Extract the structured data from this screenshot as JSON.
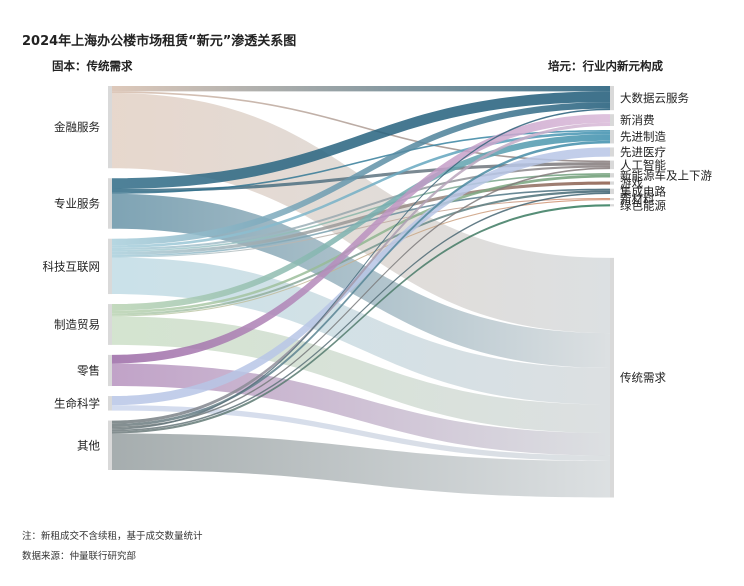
{
  "title": "2024年上海办公楼市场租赁“新元”渗透关系图",
  "left_header": "固本：传统需求",
  "right_header": "培元：行业内新元构成",
  "footnote_1": "注：新租成交不含续租，基于成交数量统计",
  "footnote_2": "数据来源：仲量联行研究部",
  "chart_data": {
    "type": "sankey",
    "title": "2024年上海办公楼市场租赁“新元”渗透关系图",
    "sources": [
      {
        "name": "金融服务",
        "color": "#d8bfae"
      },
      {
        "name": "专业服务",
        "color": "#2f6b86"
      },
      {
        "name": "科技互联网",
        "color": "#a9cfdc"
      },
      {
        "name": "制造贸易",
        "color": "#b9d3b2"
      },
      {
        "name": "零售",
        "color": "#9b6aa6"
      },
      {
        "name": "生命科学",
        "color": "#b8c6e6"
      },
      {
        "name": "其他",
        "color": "#6f7b7d"
      }
    ],
    "targets": [
      {
        "name": "大数据云服务",
        "color": "#1e5a78"
      },
      {
        "name": "新消费",
        "color": "#d9b8d8"
      },
      {
        "name": "先进制造",
        "color": "#3d8fae"
      },
      {
        "name": "先进医疗",
        "color": "#b8c6e6"
      },
      {
        "name": "人工智能",
        "color": "#857a7a"
      },
      {
        "name": "新能源车及上下游",
        "color": "#6a9a72"
      },
      {
        "name": "游戏",
        "color": "#8a5a48"
      },
      {
        "name": "集成电路",
        "color": "#3a5f6f"
      },
      {
        "name": "新材料",
        "color": "#d28a6a"
      },
      {
        "name": "绿色能源",
        "color": "#2f7a5a"
      },
      {
        "name": "传统需求",
        "color": "#c7cdd0"
      }
    ],
    "links": [
      {
        "source": "金融服务",
        "target": "大数据云服务",
        "value": 1
      },
      {
        "source": "金融服务",
        "target": "人工智能",
        "value": 0.3
      },
      {
        "source": "金融服务",
        "target": "传统需求",
        "value": 14
      },
      {
        "source": "专业服务",
        "target": "大数据云服务",
        "value": 2
      },
      {
        "source": "专业服务",
        "target": "人工智能",
        "value": 0.6
      },
      {
        "source": "专业服务",
        "target": "先进制造",
        "value": 0.3
      },
      {
        "source": "专业服务",
        "target": "传统需求",
        "value": 6.5
      },
      {
        "source": "科技互联网",
        "target": "大数据云服务",
        "value": 1.2
      },
      {
        "source": "科技互联网",
        "target": "先进制造",
        "value": 0.5
      },
      {
        "source": "科技互联网",
        "target": "人工智能",
        "value": 0.4
      },
      {
        "source": "科技互联网",
        "target": "新能源车及上下游",
        "value": 0.3
      },
      {
        "source": "科技互联网",
        "target": "游戏",
        "value": 0.6
      },
      {
        "source": "科技互联网",
        "target": "集成电路",
        "value": 0.3
      },
      {
        "source": "科技互联网",
        "target": "新材料",
        "value": 0.2
      },
      {
        "source": "科技互联网",
        "target": "传统需求",
        "value": 6.8
      },
      {
        "source": "制造贸易",
        "target": "先进制造",
        "value": 1.2
      },
      {
        "source": "制造贸易",
        "target": "新能源车及上下游",
        "value": 0.5
      },
      {
        "source": "制造贸易",
        "target": "集成电路",
        "value": 0.4
      },
      {
        "source": "制造贸易",
        "target": "新材料",
        "value": 0.2
      },
      {
        "source": "制造贸易",
        "target": "传统需求",
        "value": 5.3
      },
      {
        "source": "零售",
        "target": "新消费",
        "value": 1.6
      },
      {
        "source": "零售",
        "target": "传统需求",
        "value": 4.2
      },
      {
        "source": "生命科学",
        "target": "先进医疗",
        "value": 1.7
      },
      {
        "source": "生命科学",
        "target": "传统需求",
        "value": 1.0
      },
      {
        "source": "其他",
        "target": "新消费",
        "value": 0.6
      },
      {
        "source": "其他",
        "target": "先进制造",
        "value": 0.5
      },
      {
        "source": "其他",
        "target": "人工智能",
        "value": 0.3
      },
      {
        "source": "其他",
        "target": "大数据云服务",
        "value": 0.3
      },
      {
        "source": "其他",
        "target": "集成电路",
        "value": 0.3
      },
      {
        "source": "其他",
        "target": "绿色能源",
        "value": 0.4
      },
      {
        "source": "其他",
        "target": "传统需求",
        "value": 6.8
      }
    ]
  }
}
